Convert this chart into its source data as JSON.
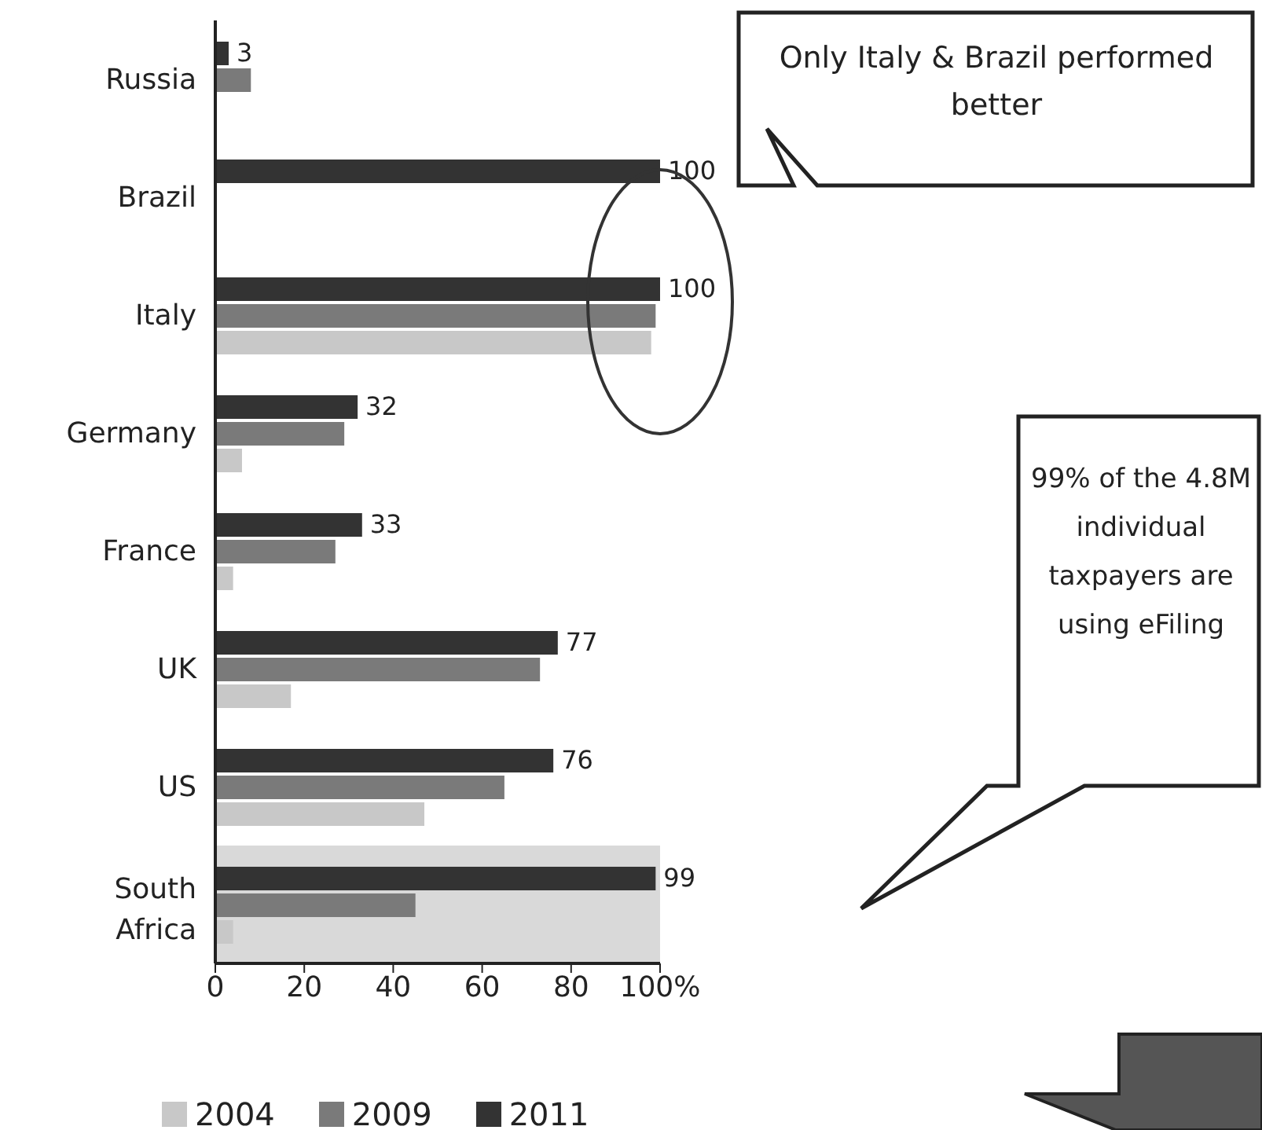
{
  "chart_data": {
    "type": "bar",
    "orientation": "horizontal",
    "categories": [
      "Russia",
      "Brazil",
      "Italy",
      "Germany",
      "France",
      "UK",
      "US",
      "South Africa"
    ],
    "series": [
      {
        "name": "2004",
        "color": "#c8c8c8",
        "values": [
          null,
          null,
          98,
          6,
          4,
          17,
          47,
          4
        ]
      },
      {
        "name": "2009",
        "color": "#7a7a7a",
        "values": [
          8,
          null,
          99,
          29,
          27,
          73,
          65,
          45
        ]
      },
      {
        "name": "2011",
        "color": "#333333",
        "values": [
          3,
          100,
          100,
          32,
          33,
          77,
          76,
          99
        ],
        "value_labels": [
          "3",
          "100",
          "100",
          "32",
          "33",
          "77",
          "76",
          "99"
        ]
      }
    ],
    "xlim": [
      0,
      100
    ],
    "xticks": [
      0,
      20,
      40,
      60,
      80,
      {
        "value": 100,
        "label": "100%"
      }
    ],
    "bands": [
      {
        "axis": "y",
        "from": "South Africa",
        "to": "South Africa",
        "color": "#d9d9d9"
      }
    ],
    "annotations": [
      "Only Italy & Brazil performed better",
      "99% of the 4.8M individual taxpayers are using eFiling"
    ],
    "legend": "bottom"
  }
}
